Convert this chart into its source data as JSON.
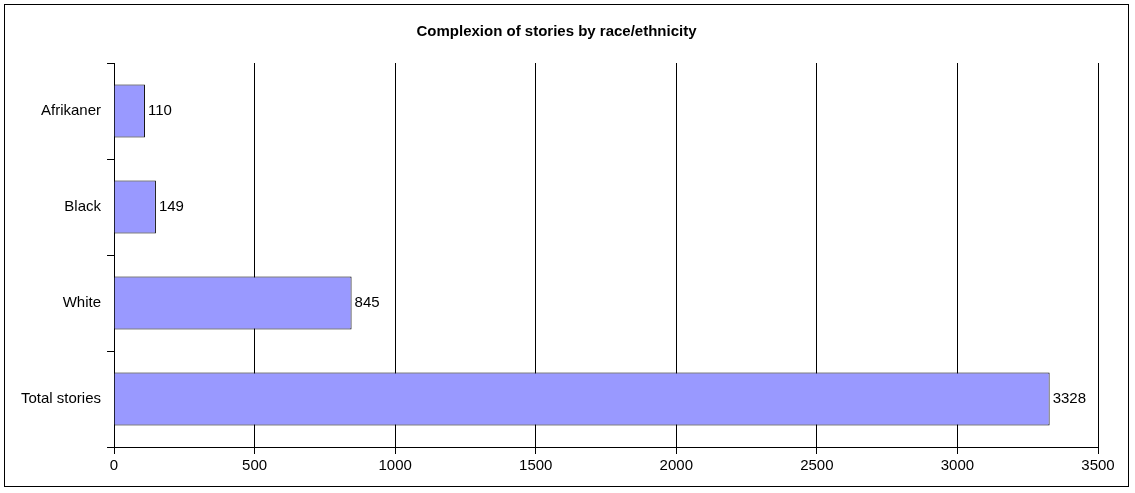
{
  "chart_data": {
    "type": "bar",
    "orientation": "horizontal",
    "title": "Complexion of stories by race/ethnicity",
    "categories": [
      "Afrikaner",
      "Black",
      "White",
      "Total stories"
    ],
    "values": [
      110,
      149,
      845,
      3328
    ],
    "color": "#9999ff",
    "xlim": [
      0,
      3500
    ],
    "xticks": [
      0,
      500,
      1000,
      1500,
      2000,
      2500,
      3000,
      3500
    ],
    "grid": "x",
    "data_labels": true,
    "legend": false
  }
}
